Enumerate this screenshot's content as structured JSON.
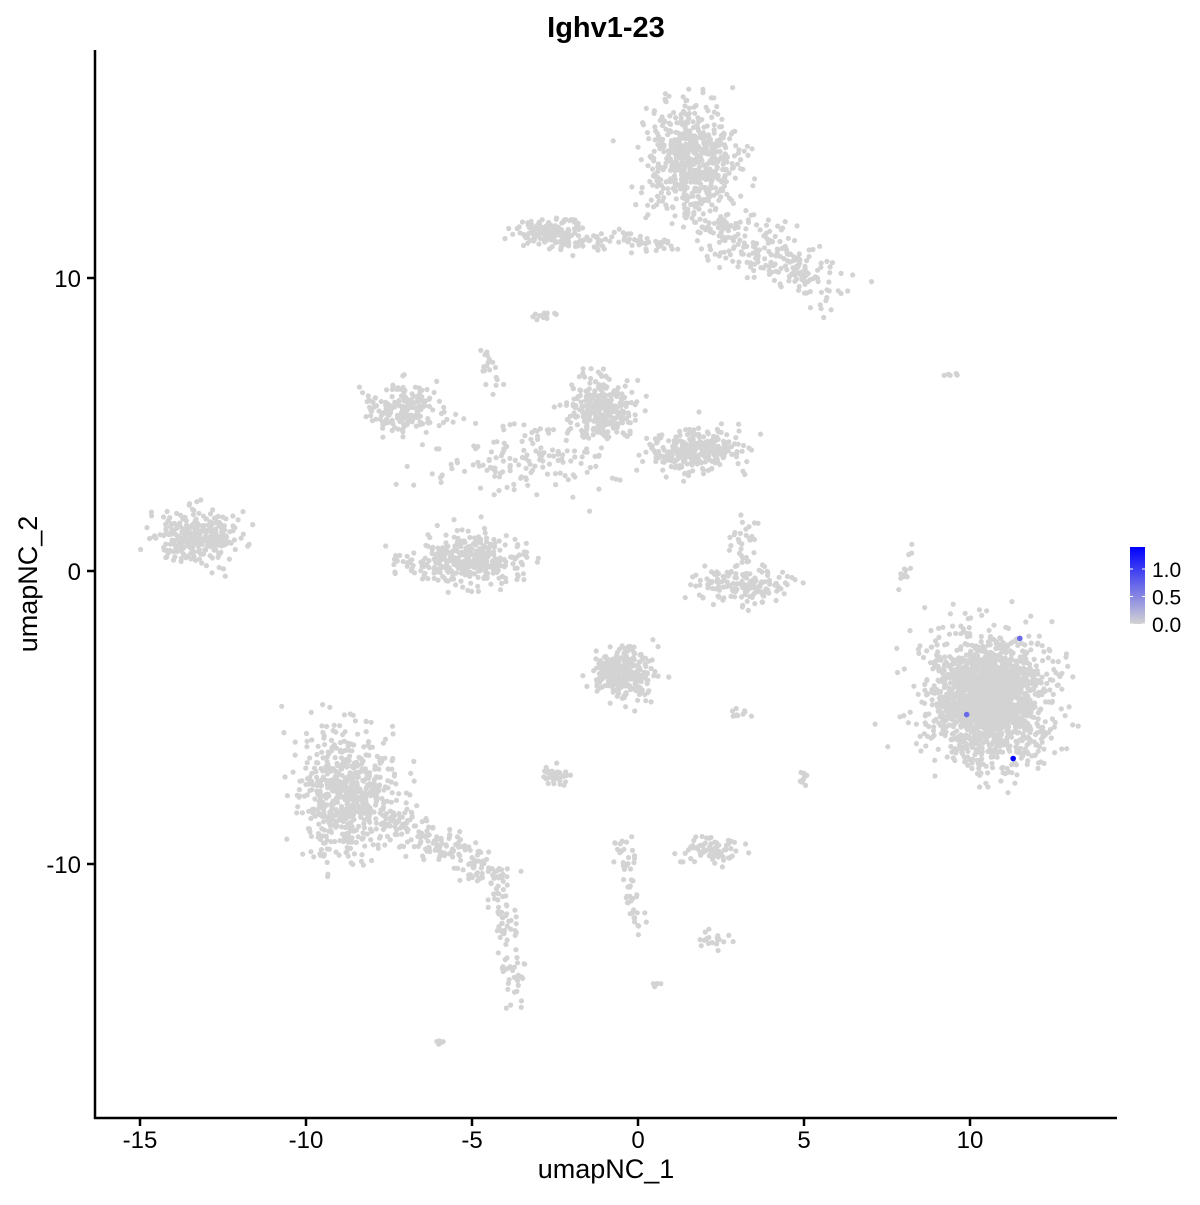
{
  "chart_data": {
    "type": "scatter",
    "title": "Ighv1-23",
    "xlabel": "umapNC_1",
    "ylabel": "umapNC_2",
    "xlim": [
      -16.5,
      14.5
    ],
    "ylim": [
      -18,
      17.5
    ],
    "xticks": [
      -15,
      -10,
      -5,
      0,
      5,
      10
    ],
    "yticks": [
      -10,
      0,
      10
    ],
    "grid": false,
    "colors": {
      "low": "#D3D3D3",
      "high": "#0000FF"
    },
    "legend": {
      "position": "right",
      "range": [
        0,
        1.4
      ],
      "ticks": [
        "0.0",
        "0.5",
        "1.0"
      ],
      "tick_values": [
        0,
        0.5,
        1.0
      ]
    },
    "clusters": [
      {
        "cx": 1.6,
        "cy": 14.0,
        "sx": 0.9,
        "sy": 1.3,
        "n": 600
      },
      {
        "line": [
          [
            1.9,
            12.0
          ],
          [
            5.9,
            9.6
          ]
        ],
        "spread": 0.45,
        "n": 250
      },
      {
        "cx": -2.7,
        "cy": 11.6,
        "sx": 0.6,
        "sy": 0.3,
        "n": 150
      },
      {
        "line": [
          [
            -2.5,
            11.2
          ],
          [
            0.9,
            11.2
          ]
        ],
        "spread": 0.15,
        "n": 80
      },
      {
        "cx": -2.8,
        "cy": 8.7,
        "sx": 0.2,
        "sy": 0.15,
        "n": 15
      },
      {
        "line": [
          [
            -4.6,
            7.7
          ],
          [
            -4.3,
            5.5
          ]
        ],
        "spread": 0.15,
        "n": 20
      },
      {
        "cx": -7.0,
        "cy": 5.5,
        "sx": 0.7,
        "sy": 0.6,
        "n": 200
      },
      {
        "cx": -1.1,
        "cy": 5.5,
        "sx": 0.6,
        "sy": 0.7,
        "n": 300
      },
      {
        "cx": 1.7,
        "cy": 4.1,
        "sx": 0.8,
        "sy": 0.5,
        "n": 300
      },
      {
        "cx": -3.3,
        "cy": 3.8,
        "sx": 2.0,
        "sy": 0.8,
        "n": 150
      },
      {
        "cx": -5.1,
        "cy": 0.4,
        "sx": 1.2,
        "sy": 0.6,
        "n": 350
      },
      {
        "cx": -13.3,
        "cy": 1.2,
        "sx": 0.8,
        "sy": 0.6,
        "n": 300
      },
      {
        "cx": 3.2,
        "cy": -0.5,
        "sx": 1.0,
        "sy": 0.4,
        "n": 150
      },
      {
        "cx": 3.2,
        "cy": 0.9,
        "sx": 0.3,
        "sy": 0.5,
        "n": 30
      },
      {
        "cx": 10.5,
        "cy": -4.4,
        "sx": 1.2,
        "sy": 1.4,
        "n": 1800
      },
      {
        "cx": -0.4,
        "cy": -3.5,
        "sx": 0.6,
        "sy": 0.6,
        "n": 300
      },
      {
        "cx": -8.8,
        "cy": -7.5,
        "sx": 0.9,
        "sy": 1.4,
        "n": 600
      },
      {
        "line": [
          [
            -8.0,
            -8.0
          ],
          [
            -4.2,
            -10.5
          ]
        ],
        "spread": 0.35,
        "n": 200
      },
      {
        "line": [
          [
            -4.2,
            -10.5
          ],
          [
            -3.6,
            -15.0
          ]
        ],
        "spread": 0.2,
        "n": 80
      },
      {
        "cx": -2.5,
        "cy": -7.0,
        "sx": 0.3,
        "sy": 0.2,
        "n": 40
      },
      {
        "cx": 2.3,
        "cy": -9.5,
        "sx": 0.6,
        "sy": 0.3,
        "n": 80
      },
      {
        "line": [
          [
            -0.5,
            -9.0
          ],
          [
            0.0,
            -12.3
          ]
        ],
        "spread": 0.15,
        "n": 50
      },
      {
        "cx": 2.3,
        "cy": -12.6,
        "sx": 0.3,
        "sy": 0.15,
        "n": 20
      },
      {
        "line": [
          [
            8.2,
            0.9
          ],
          [
            7.8,
            -1.0
          ]
        ],
        "spread": 0.08,
        "n": 15
      },
      {
        "cx": 5.0,
        "cy": -7.1,
        "sx": 0.1,
        "sy": 0.3,
        "n": 10
      },
      {
        "cx": 3.1,
        "cy": -4.9,
        "sx": 0.3,
        "sy": 0.1,
        "n": 10
      },
      {
        "cx": -6.0,
        "cy": -16.1,
        "sx": 0.1,
        "sy": 0.1,
        "n": 5
      },
      {
        "cx": 9.4,
        "cy": 6.7,
        "sx": 0.2,
        "sy": 0.05,
        "n": 5
      },
      {
        "cx": 0.6,
        "cy": -14.1,
        "sx": 0.1,
        "sy": 0.1,
        "n": 4
      }
    ],
    "expressing_points": [
      {
        "x": 11.5,
        "y": -2.3,
        "value": 0.7
      },
      {
        "x": 9.9,
        "y": -4.9,
        "value": 0.7
      },
      {
        "x": 11.3,
        "y": -6.4,
        "value": 1.4
      }
    ]
  }
}
